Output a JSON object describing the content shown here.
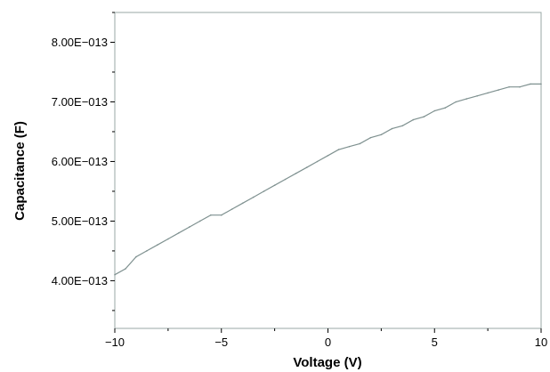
{
  "chart_data": {
    "type": "line",
    "xlabel": "Voltage (V)",
    "ylabel": "Capacitance (F)",
    "xlim": [
      -10,
      10
    ],
    "ylim": [
      3.2e-13,
      8.5e-13
    ],
    "x_ticks": [
      -10,
      -5,
      0,
      5,
      10
    ],
    "x_tick_labels": [
      "−10",
      "−5",
      "0",
      "5",
      "10"
    ],
    "y_ticks": [
      4e-13,
      5e-13,
      6e-13,
      7e-13,
      8e-13
    ],
    "y_tick_labels": [
      "4.00E−013",
      "5.00E−013",
      "6.00E−013",
      "7.00E−013",
      "8.00E−013"
    ],
    "grid": false,
    "legend": "none",
    "line_color": "#7f9190",
    "series": [
      {
        "x": [
          -10,
          -9.5,
          -9,
          -8.5,
          -8,
          -7.5,
          -7,
          -6.5,
          -6,
          -5.5,
          -5,
          -4.5,
          -4,
          -3.5,
          -3,
          -2.5,
          -2,
          -1.5,
          -1,
          -0.5,
          0,
          0.5,
          1,
          1.5,
          2,
          2.5,
          3,
          3.5,
          4,
          4.5,
          5,
          5.5,
          6,
          6.5,
          7,
          7.5,
          8,
          8.5,
          9,
          9.5,
          10
        ],
        "values": [
          4.1e-13,
          4.2e-13,
          4.4e-13,
          4.5e-13,
          4.6e-13,
          4.7e-13,
          4.8e-13,
          4.9e-13,
          5e-13,
          5.1e-13,
          5.1e-13,
          5.2e-13,
          5.3e-13,
          5.4e-13,
          5.5e-13,
          5.6e-13,
          5.7e-13,
          5.8e-13,
          5.9e-13,
          6e-13,
          6.1e-13,
          6.2e-13,
          6.25e-13,
          6.3e-13,
          6.4e-13,
          6.45e-13,
          6.55e-13,
          6.6e-13,
          6.7e-13,
          6.75e-13,
          6.85e-13,
          6.9e-13,
          7e-13,
          7.05e-13,
          7.1e-13,
          7.15e-13,
          7.2e-13,
          7.25e-13,
          7.25e-13,
          7.3e-13,
          7.3e-13
        ]
      }
    ]
  }
}
